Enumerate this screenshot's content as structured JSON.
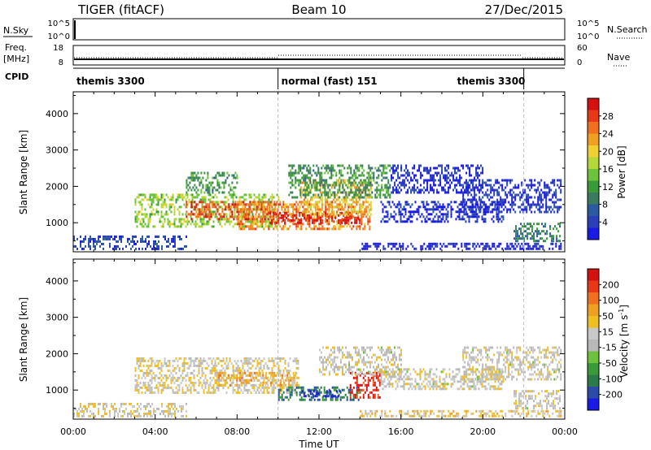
{
  "header": {
    "radar": "TIGER (fitACF)",
    "beam": "Beam 10",
    "date": "27/Dec/2015"
  },
  "nsky_panel": {
    "left_label": "N.Sky",
    "right_label": "N.Search",
    "ticks_left": [
      "10^5",
      "10^0"
    ],
    "ticks_right": [
      "10^5",
      "10^0"
    ]
  },
  "freq_panel": {
    "left_label_1": "Freq.",
    "left_label_2": "[MHz]",
    "right_label": "Nave",
    "ticks_left": [
      "18",
      "8"
    ],
    "ticks_right": [
      "60",
      "0"
    ]
  },
  "cpid": {
    "label": "CPID",
    "segments": [
      {
        "label": "themis 3300",
        "start_hour": 0,
        "end_hour": 10
      },
      {
        "label": "normal (fast) 151",
        "start_hour": 10,
        "end_hour": 22
      },
      {
        "label": "themis 3300",
        "start_hour": 22,
        "end_hour": 24
      }
    ]
  },
  "chart_data": [
    {
      "type": "heatmap",
      "panel": "power",
      "x_unit": "hours UT",
      "xlim": [
        0,
        24
      ],
      "ylim": [
        200,
        4600
      ],
      "ylabel": "Slant Range [km]",
      "yticks": [
        1000,
        2000,
        3000,
        4000
      ],
      "colorbar": {
        "label": "Power [dB]",
        "ticks": [
          "28",
          "24",
          "20",
          "16",
          "12",
          "8",
          "4"
        ],
        "colors": [
          "#1a1ae6",
          "#2a3fb8",
          "#2c5aa0",
          "#3a7a60",
          "#3a9a3a",
          "#6cc23a",
          "#b4d83a",
          "#f0d030",
          "#f0a020",
          "#f07020",
          "#e83818",
          "#d41010"
        ]
      },
      "regions": [
        {
          "x": [
            0.0,
            5.5
          ],
          "y": [
            300,
            650
          ],
          "level": 0.15
        },
        {
          "x": [
            3.0,
            10.0
          ],
          "y": [
            900,
            1800
          ],
          "level": 0.5
        },
        {
          "x": [
            5.5,
            10.0
          ],
          "y": [
            1100,
            1600
          ],
          "level": 0.85
        },
        {
          "x": [
            8.0,
            14.5
          ],
          "y": [
            800,
            1600
          ],
          "level": 0.75
        },
        {
          "x": [
            9.5,
            14.0
          ],
          "y": [
            1000,
            1300
          ],
          "level": 0.95
        },
        {
          "x": [
            11.0,
            14.5
          ],
          "y": [
            1200,
            2200
          ],
          "level": 0.65
        },
        {
          "x": [
            10.5,
            15.5
          ],
          "y": [
            1700,
            2600
          ],
          "level": 0.35
        },
        {
          "x": [
            5.5,
            8.0
          ],
          "y": [
            1800,
            2400
          ],
          "level": 0.35
        },
        {
          "x": [
            15.0,
            21.0
          ],
          "y": [
            1000,
            1600
          ],
          "level": 0.08
        },
        {
          "x": [
            15.5,
            20.0
          ],
          "y": [
            1800,
            2600
          ],
          "level": 0.08
        },
        {
          "x": [
            19.0,
            23.8
          ],
          "y": [
            1300,
            2200
          ],
          "level": 0.1
        },
        {
          "x": [
            14.0,
            23.8
          ],
          "y": [
            250,
            450
          ],
          "level": 0.05
        },
        {
          "x": [
            21.5,
            23.8
          ],
          "y": [
            500,
            1000
          ],
          "level": 0.3
        }
      ]
    },
    {
      "type": "heatmap",
      "panel": "velocity",
      "x_unit": "hours UT",
      "xlim": [
        0,
        24
      ],
      "ylim": [
        200,
        4600
      ],
      "ylabel": "Slant Range [km]",
      "xlabel": "Time UT",
      "yticks": [
        1000,
        2000,
        3000,
        4000
      ],
      "xticks": [
        "00:00",
        "04:00",
        "08:00",
        "12:00",
        "16:00",
        "20:00",
        "00:00"
      ],
      "colorbar": {
        "label_main": "Velocity [m s",
        "label_sup": "-1",
        "label_end": "]",
        "ticks": [
          "200",
          "100",
          "50",
          "15",
          "-15",
          "-50",
          "-100",
          "-200"
        ],
        "colors": [
          "#1a1ae6",
          "#2c4aa8",
          "#2c7a4a",
          "#3a9a3a",
          "#6cc23a",
          "#b8b8b8",
          "#c8c8c8",
          "#f0c020",
          "#f0a020",
          "#f07020",
          "#e83818",
          "#d41010"
        ]
      },
      "regions": [
        {
          "x": [
            0.0,
            5.5
          ],
          "y": [
            300,
            650
          ],
          "level": 0.55
        },
        {
          "x": [
            3.0,
            11.0
          ],
          "y": [
            900,
            1900
          ],
          "level": 0.55
        },
        {
          "x": [
            7.0,
            11.0
          ],
          "y": [
            1100,
            1500
          ],
          "level": 0.68
        },
        {
          "x": [
            10.0,
            14.0
          ],
          "y": [
            700,
            1100
          ],
          "level": 0.2
        },
        {
          "x": [
            11.0,
            13.0
          ],
          "y": [
            850,
            1000
          ],
          "level": 0.05
        },
        {
          "x": [
            13.5,
            15.0
          ],
          "y": [
            800,
            1500
          ],
          "level": 0.92
        },
        {
          "x": [
            12.0,
            16.0
          ],
          "y": [
            1400,
            2200
          ],
          "level": 0.52
        },
        {
          "x": [
            15.0,
            21.0
          ],
          "y": [
            1000,
            1600
          ],
          "level": 0.52
        },
        {
          "x": [
            19.0,
            23.8
          ],
          "y": [
            1300,
            2200
          ],
          "level": 0.52
        },
        {
          "x": [
            21.5,
            23.8
          ],
          "y": [
            500,
            1000
          ],
          "level": 0.52
        },
        {
          "x": [
            14.0,
            23.8
          ],
          "y": [
            250,
            450
          ],
          "level": 0.6
        }
      ]
    }
  ]
}
